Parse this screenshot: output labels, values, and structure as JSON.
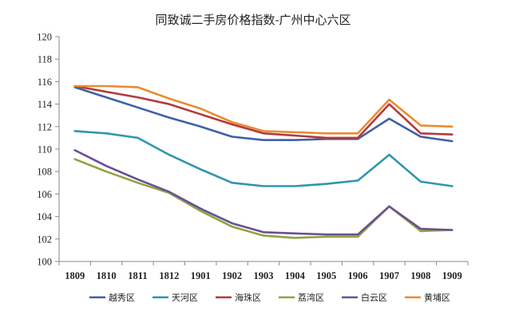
{
  "chart_data": {
    "type": "line",
    "title": "同致诚二手房价格指数-广州中心六区",
    "categories": [
      "1809",
      "1810",
      "1811",
      "1812",
      "1901",
      "1902",
      "1903",
      "1904",
      "1905",
      "1906",
      "1907",
      "1908",
      "1909"
    ],
    "ylim": [
      100,
      120
    ],
    "yticks": [
      100,
      102,
      104,
      106,
      108,
      110,
      112,
      114,
      116,
      118,
      120
    ],
    "grid": false,
    "legend_position": "bottom",
    "series": [
      {
        "name": "越秀区",
        "color": "#3F5FA8",
        "values": [
          115.5,
          114.6,
          113.7,
          112.8,
          112.0,
          111.1,
          110.8,
          110.8,
          110.9,
          110.9,
          112.7,
          111.1,
          110.7
        ]
      },
      {
        "name": "天河区",
        "color": "#2F96AE",
        "values": [
          111.6,
          111.4,
          111.0,
          109.5,
          108.2,
          107.0,
          106.7,
          106.7,
          106.9,
          107.2,
          109.5,
          107.1,
          106.7
        ]
      },
      {
        "name": "海珠区",
        "color": "#B33A3A",
        "values": [
          115.6,
          115.1,
          114.6,
          114.0,
          113.1,
          112.2,
          111.4,
          111.2,
          111.0,
          111.0,
          114.0,
          111.4,
          111.3
        ]
      },
      {
        "name": "荔湾区",
        "color": "#8FA43F",
        "values": [
          109.1,
          108.0,
          107.0,
          106.1,
          104.5,
          103.1,
          102.3,
          102.1,
          102.2,
          102.2,
          104.9,
          102.7,
          102.8
        ]
      },
      {
        "name": "白云区",
        "color": "#6A4F96",
        "values": [
          109.9,
          108.5,
          107.3,
          106.2,
          104.7,
          103.4,
          102.6,
          102.5,
          102.4,
          102.4,
          104.9,
          102.9,
          102.8
        ]
      },
      {
        "name": "黄埔区",
        "color": "#E98B33",
        "values": [
          115.6,
          115.6,
          115.5,
          114.5,
          113.6,
          112.4,
          111.6,
          111.5,
          111.4,
          111.4,
          114.4,
          112.1,
          112.0
        ]
      }
    ]
  }
}
